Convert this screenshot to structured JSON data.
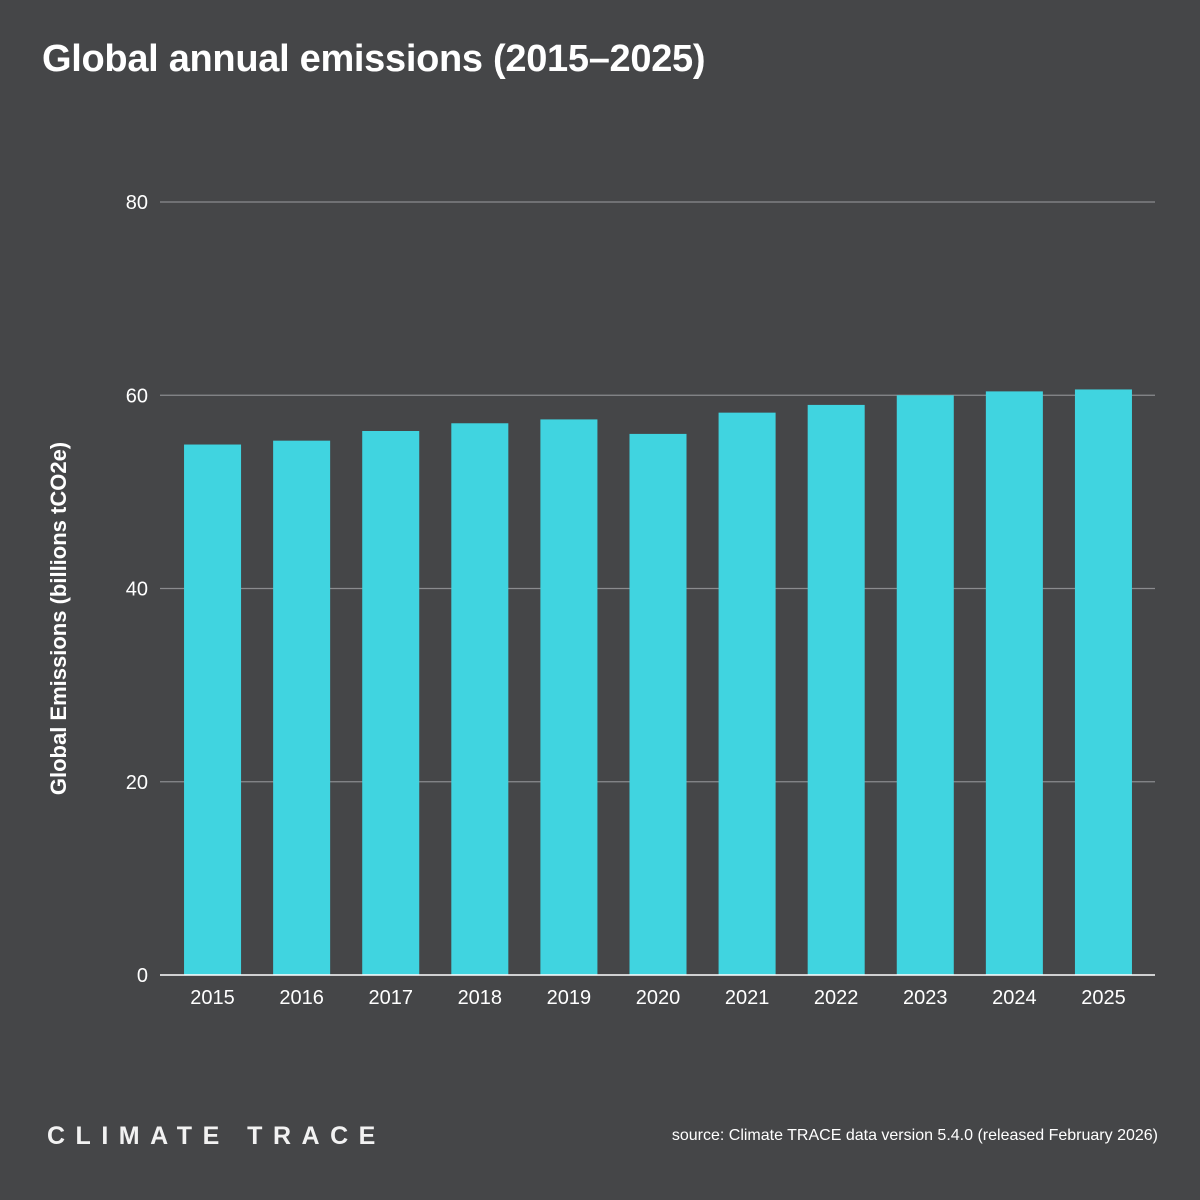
{
  "page": {
    "title": "Global annual emissions (2015–2025)",
    "logo_text": "CLIMATE TRACE",
    "source": "source: Climate TRACE data version 5.4.0 (released February 2026)"
  },
  "colors": {
    "background": "#454648",
    "bar": "#40d4e0",
    "grid": "#8a8b8e",
    "axis": "#ffffff",
    "text": "#ffffff"
  },
  "chart_data": {
    "type": "bar",
    "title": "Global annual emissions (2015–2025)",
    "xlabel": "",
    "ylabel": "Global Emissions (billions tCO2e)",
    "ylim": [
      0,
      80
    ],
    "yticks": [
      0,
      20,
      40,
      60,
      80
    ],
    "grid": true,
    "categories": [
      "2015",
      "2016",
      "2017",
      "2018",
      "2019",
      "2020",
      "2021",
      "2022",
      "2023",
      "2024",
      "2025"
    ],
    "values": [
      54.9,
      55.3,
      56.3,
      57.1,
      57.5,
      56.0,
      58.2,
      59.0,
      60.0,
      60.4,
      60.6
    ]
  }
}
